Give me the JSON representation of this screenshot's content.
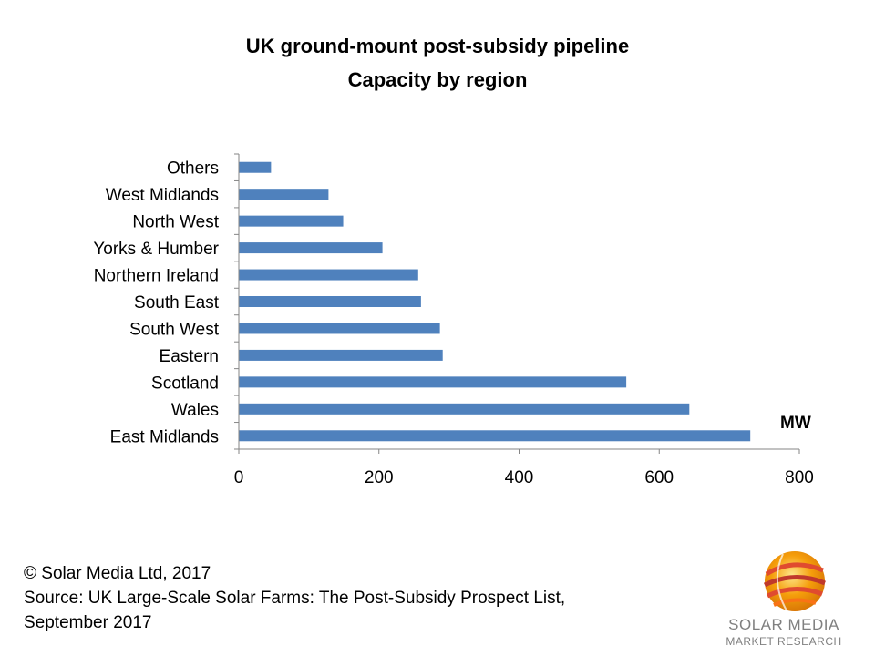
{
  "chart_data": {
    "type": "bar",
    "orientation": "horizontal",
    "title": "UK ground-mount post-subsidy pipeline",
    "subtitle": "Capacity by region",
    "categories": [
      "East Midlands",
      "Wales",
      "Scotland",
      "Eastern",
      "South West",
      "South East",
      "Northern Ireland",
      "Yorks & Humber",
      "North West",
      "West Midlands",
      "Others"
    ],
    "values": [
      730,
      643,
      553,
      291,
      287,
      260,
      256,
      205,
      149,
      128,
      46
    ],
    "xlim": [
      0,
      800
    ],
    "xticks": [
      0,
      200,
      400,
      600,
      800
    ],
    "unit_label": "MW",
    "bar_color": "#4f81bd",
    "grid": false
  },
  "footer": {
    "copyright": "© Solar Media Ltd, 2017",
    "source": "Source: UK Large-Scale Solar Farms: The Post-Subsidy Prospect List, September 2017"
  },
  "logo": {
    "line1": "SOLAR MEDIA",
    "line2": "MARKET RESEARCH"
  }
}
